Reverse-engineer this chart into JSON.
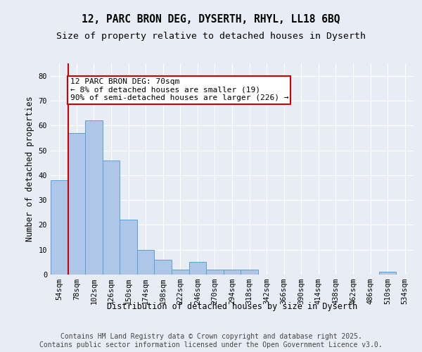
{
  "title1": "12, PARC BRON DEG, DYSERTH, RHYL, LL18 6BQ",
  "title2": "Size of property relative to detached houses in Dyserth",
  "xlabel": "Distribution of detached houses by size in Dyserth",
  "ylabel": "Number of detached properties",
  "categories": [
    "54sqm",
    "78sqm",
    "102sqm",
    "126sqm",
    "150sqm",
    "174sqm",
    "198sqm",
    "222sqm",
    "246sqm",
    "270sqm",
    "294sqm",
    "318sqm",
    "342sqm",
    "366sqm",
    "390sqm",
    "414sqm",
    "438sqm",
    "462sqm",
    "486sqm",
    "510sqm",
    "534sqm"
  ],
  "values": [
    38,
    57,
    62,
    46,
    22,
    10,
    6,
    2,
    5,
    2,
    2,
    2,
    0,
    0,
    0,
    0,
    0,
    0,
    0,
    1,
    0
  ],
  "bar_color": "#aec6e8",
  "bar_edge_color": "#5a9fd4",
  "annotation_line1": "12 PARC BRON DEG: 70sqm",
  "annotation_line2": "← 8% of detached houses are smaller (19)",
  "annotation_line3": "90% of semi-detached houses are larger (226) →",
  "annotation_box_color": "#ffffff",
  "annotation_box_edge_color": "#cc0000",
  "vline_color": "#cc0000",
  "ylim": [
    0,
    85
  ],
  "yticks": [
    0,
    10,
    20,
    30,
    40,
    50,
    60,
    70,
    80
  ],
  "background_color": "#e8edf5",
  "grid_color": "#ffffff",
  "footer_text": "Contains HM Land Registry data © Crown copyright and database right 2025.\nContains public sector information licensed under the Open Government Licence v3.0.",
  "title_fontsize": 10.5,
  "subtitle_fontsize": 9.5,
  "axis_label_fontsize": 8.5,
  "tick_fontsize": 7.5,
  "annotation_fontsize": 8,
  "footer_fontsize": 7
}
